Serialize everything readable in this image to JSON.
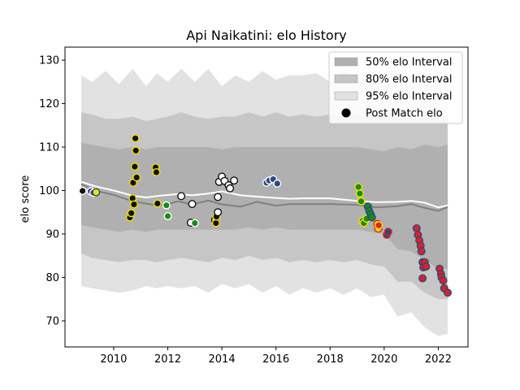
{
  "chart_data": {
    "type": "line",
    "title": "Api Naikatini: elo History",
    "xlabel": "",
    "ylabel": "elo score",
    "xlim": [
      2008.2,
      2023.1
    ],
    "ylim": [
      64,
      133
    ],
    "x_ticks": [
      2010,
      2012,
      2014,
      2016,
      2018,
      2020,
      2022
    ],
    "y_ticks": [
      70,
      80,
      90,
      100,
      110,
      120,
      130
    ],
    "grid": false,
    "legend_position": "top-right",
    "legend": [
      {
        "label": "50% elo Interval",
        "color": "#b0b0b0",
        "kind": "patch"
      },
      {
        "label": "80% elo Interval",
        "color": "#c6c6c6",
        "kind": "patch"
      },
      {
        "label": "95% elo Interval",
        "color": "#e2e2e2",
        "kind": "patch"
      },
      {
        "label": "Post Match elo",
        "color": "#000000",
        "kind": "marker"
      }
    ],
    "band_x": [
      2008.8,
      2009.2,
      2009.7,
      2010.2,
      2010.7,
      2011.2,
      2011.6,
      2012.0,
      2012.5,
      2013.0,
      2013.5,
      2014.0,
      2014.5,
      2015.0,
      2015.5,
      2016.0,
      2016.5,
      2017.0,
      2017.5,
      2018.0,
      2018.5,
      2019.0,
      2019.5,
      2020.0,
      2020.5,
      2021.0,
      2021.5,
      2022.0,
      2022.35
    ],
    "band_95_upper": [
      126.5,
      125,
      127.5,
      124.5,
      128,
      124,
      127,
      125,
      128,
      125,
      128,
      124,
      126.5,
      125,
      127.5,
      125.5,
      126.5,
      126.5,
      127,
      125,
      128,
      125,
      127.5,
      126.5,
      128,
      125.5,
      127.5,
      126,
      127.5
    ],
    "band_95_lower": [
      78,
      77.5,
      77,
      76.5,
      77,
      78,
      77.5,
      78,
      77.5,
      78,
      76.5,
      78.5,
      77.5,
      78.5,
      76.5,
      78,
      76,
      77.5,
      76.5,
      77.5,
      76,
      77.5,
      75.5,
      76,
      71,
      72,
      68.5,
      66.5,
      67
    ],
    "band_80_upper": [
      118,
      117.5,
      116.5,
      116.5,
      117,
      116,
      116.5,
      117,
      118,
      117,
      116.5,
      117,
      117,
      118,
      117,
      118,
      117,
      117.5,
      117,
      117.5,
      117,
      117.5,
      116.5,
      116.5,
      117.5,
      116.5,
      117,
      117,
      117
    ],
    "band_80_lower": [
      85.5,
      84.5,
      84,
      83.5,
      84,
      84,
      83.5,
      84,
      84.5,
      84,
      83.5,
      84.5,
      84,
      85,
      84,
      84.5,
      83.5,
      84,
      83.5,
      84,
      83.5,
      84,
      83,
      82.5,
      79,
      79,
      76.5,
      75,
      75
    ],
    "band_50_upper": [
      111,
      110.5,
      110,
      109.5,
      110,
      109.5,
      110,
      110,
      110,
      110,
      110,
      109.5,
      110,
      110,
      110,
      110,
      110,
      110,
      110,
      110,
      110,
      110,
      109.5,
      109,
      110,
      109.5,
      110.5,
      110,
      110.5
    ],
    "band_50_lower": [
      92,
      91.5,
      91,
      90.5,
      91,
      90.5,
      91,
      91,
      91,
      91,
      91,
      91,
      91,
      91.5,
      91,
      91.5,
      91,
      91,
      91,
      91,
      91,
      91,
      90.5,
      90,
      86.5,
      86,
      84,
      82,
      82
    ],
    "series": [
      {
        "kind": "median",
        "color": "#808080",
        "x": [
          2008.8,
          2009.3,
          2010.0,
          2010.7,
          2011.2,
          2011.7,
          2012.4,
          2012.9,
          2013.5,
          2014.0,
          2014.7,
          2015.3,
          2016.0,
          2016.5,
          2017.0,
          2018.0,
          2019.0,
          2019.7,
          2020.5,
          2021.0,
          2021.5,
          2022.0,
          2022.35
        ],
        "y": [
          101.5,
          100,
          99,
          97.5,
          97,
          96.5,
          97.5,
          96.8,
          97.7,
          96.8,
          96.3,
          97.4,
          96.5,
          96.9,
          96.9,
          96.9,
          96.7,
          96.1,
          96.4,
          96.9,
          96,
          95.3,
          96.2
        ]
      },
      {
        "kind": "mean",
        "color": "#ffffff",
        "x": [
          2008.8,
          2009.3,
          2010.0,
          2010.7,
          2011.2,
          2011.7,
          2012.4,
          2012.9,
          2013.5,
          2014.0,
          2014.7,
          2015.3,
          2016.0,
          2016.5,
          2017.0,
          2018.0,
          2019.0,
          2019.7,
          2020.5,
          2021.0,
          2021.5,
          2022.0,
          2022.35
        ],
        "y": [
          102,
          101,
          100,
          98.8,
          98.4,
          98.8,
          99.2,
          98.9,
          99.3,
          99.8,
          98.9,
          98.6,
          98.3,
          98.1,
          98.2,
          98.2,
          97.6,
          97.3,
          97.4,
          97.6,
          97.2,
          96.1,
          96.6
        ]
      }
    ],
    "points": [
      {
        "x": 2008.85,
        "y": 99.9,
        "fill": "#111111",
        "edge": "#ffffff"
      },
      {
        "x": 2009.15,
        "y": 99.8,
        "fill": "#2a4a7f",
        "edge": "#ffffff"
      },
      {
        "x": 2009.25,
        "y": 99.5,
        "fill": "#2a4a7f",
        "edge": "#ffffff"
      },
      {
        "x": 2009.35,
        "y": 99.6,
        "fill": "#f5e000",
        "edge": "#2a4a7f"
      },
      {
        "x": 2010.6,
        "y": 93.8,
        "fill": "#111111",
        "edge": "#f5e000"
      },
      {
        "x": 2010.65,
        "y": 94.8,
        "fill": "#111111",
        "edge": "#f5e000"
      },
      {
        "x": 2010.7,
        "y": 98.2,
        "fill": "#111111",
        "edge": "#f5e000"
      },
      {
        "x": 2010.72,
        "y": 101.8,
        "fill": "#111111",
        "edge": "#f5e000"
      },
      {
        "x": 2010.75,
        "y": 96.8,
        "fill": "#111111",
        "edge": "#f5e000"
      },
      {
        "x": 2010.78,
        "y": 105.5,
        "fill": "#111111",
        "edge": "#f5e000"
      },
      {
        "x": 2010.8,
        "y": 112.0,
        "fill": "#111111",
        "edge": "#f5e000"
      },
      {
        "x": 2010.82,
        "y": 109.2,
        "fill": "#111111",
        "edge": "#f5e000"
      },
      {
        "x": 2010.85,
        "y": 103.0,
        "fill": "#111111",
        "edge": "#f5e000"
      },
      {
        "x": 2011.55,
        "y": 105.3,
        "fill": "#111111",
        "edge": "#f5e000"
      },
      {
        "x": 2011.58,
        "y": 104.2,
        "fill": "#111111",
        "edge": "#f5e000"
      },
      {
        "x": 2011.62,
        "y": 97.0,
        "fill": "#111111",
        "edge": "#f5e000"
      },
      {
        "x": 2011.95,
        "y": 96.6,
        "fill": "#1a8a1a",
        "edge": "#ffffff"
      },
      {
        "x": 2012.0,
        "y": 94.1,
        "fill": "#1a8a1a",
        "edge": "#ffffff"
      },
      {
        "x": 2012.5,
        "y": 98.7,
        "fill": "#ffffff",
        "edge": "#111111"
      },
      {
        "x": 2012.85,
        "y": 92.6,
        "fill": "#ffffff",
        "edge": "#111111"
      },
      {
        "x": 2012.9,
        "y": 96.9,
        "fill": "#ffffff",
        "edge": "#111111"
      },
      {
        "x": 2013.0,
        "y": 92.5,
        "fill": "#1a8a1a",
        "edge": "#ffffff"
      },
      {
        "x": 2013.75,
        "y": 93.2,
        "fill": "#f5e000",
        "edge": "#111111"
      },
      {
        "x": 2013.78,
        "y": 92.5,
        "fill": "#111111",
        "edge": "#f5e000"
      },
      {
        "x": 2013.8,
        "y": 94.0,
        "fill": "#111111",
        "edge": "#f5e000"
      },
      {
        "x": 2013.85,
        "y": 95.0,
        "fill": "#ffffff",
        "edge": "#111111"
      },
      {
        "x": 2013.85,
        "y": 98.5,
        "fill": "#ffffff",
        "edge": "#111111"
      },
      {
        "x": 2013.9,
        "y": 102.0,
        "fill": "#ffffff",
        "edge": "#111111"
      },
      {
        "x": 2014.0,
        "y": 103.2,
        "fill": "#ffffff",
        "edge": "#111111"
      },
      {
        "x": 2014.1,
        "y": 102.2,
        "fill": "#ffffff",
        "edge": "#111111"
      },
      {
        "x": 2014.25,
        "y": 101.2,
        "fill": "#ffffff",
        "edge": "#111111"
      },
      {
        "x": 2014.3,
        "y": 100.5,
        "fill": "#ffffff",
        "edge": "#111111"
      },
      {
        "x": 2014.45,
        "y": 102.3,
        "fill": "#ffffff",
        "edge": "#111111"
      },
      {
        "x": 2015.65,
        "y": 101.8,
        "fill": "#2a4a7f",
        "edge": "#ffffff"
      },
      {
        "x": 2015.75,
        "y": 102.3,
        "fill": "#2a4a7f",
        "edge": "#ffffff"
      },
      {
        "x": 2015.9,
        "y": 102.6,
        "fill": "#2a4a7f",
        "edge": "#ffffff"
      },
      {
        "x": 2016.05,
        "y": 101.6,
        "fill": "#2a4a7f",
        "edge": "#ffffff"
      },
      {
        "x": 2019.05,
        "y": 100.8,
        "fill": "#1a8a1a",
        "edge": "#f5e000"
      },
      {
        "x": 2019.1,
        "y": 99.3,
        "fill": "#1a8a1a",
        "edge": "#f5e000"
      },
      {
        "x": 2019.15,
        "y": 97.5,
        "fill": "#1a8a1a",
        "edge": "#f5e000"
      },
      {
        "x": 2019.2,
        "y": 93.0,
        "fill": "#1a8a1a",
        "edge": "#f5e000"
      },
      {
        "x": 2019.25,
        "y": 92.5,
        "fill": "#1a8a1a",
        "edge": "#f5e000"
      },
      {
        "x": 2019.35,
        "y": 93.5,
        "fill": "#1a8a1a",
        "edge": "#f5e000"
      },
      {
        "x": 2019.4,
        "y": 96.3,
        "fill": "#1a8a1a",
        "edge": "#2a4a7f"
      },
      {
        "x": 2019.45,
        "y": 95.3,
        "fill": "#1a8a1a",
        "edge": "#2a4a7f"
      },
      {
        "x": 2019.5,
        "y": 94.5,
        "fill": "#1a8a1a",
        "edge": "#2a4a7f"
      },
      {
        "x": 2019.55,
        "y": 93.8,
        "fill": "#1a8a1a",
        "edge": "#2a4a7f"
      },
      {
        "x": 2019.75,
        "y": 92.3,
        "fill": "#f5e000",
        "edge": "#e02020"
      },
      {
        "x": 2019.78,
        "y": 91.2,
        "fill": "#f5e000",
        "edge": "#e02020"
      },
      {
        "x": 2019.8,
        "y": 92.0,
        "fill": "#e02020",
        "edge": "#f5e000"
      },
      {
        "x": 2020.1,
        "y": 89.8,
        "fill": "#2a4a7f",
        "edge": "#e02020"
      },
      {
        "x": 2020.15,
        "y": 90.5,
        "fill": "#2a4a7f",
        "edge": "#e02020"
      },
      {
        "x": 2021.2,
        "y": 91.3,
        "fill": "#e02020",
        "edge": "#2a4a7f"
      },
      {
        "x": 2021.25,
        "y": 89.8,
        "fill": "#e02020",
        "edge": "#2a4a7f"
      },
      {
        "x": 2021.3,
        "y": 88.5,
        "fill": "#e02020",
        "edge": "#2a4a7f"
      },
      {
        "x": 2021.35,
        "y": 87.3,
        "fill": "#e02020",
        "edge": "#2a4a7f"
      },
      {
        "x": 2021.38,
        "y": 86.0,
        "fill": "#e02020",
        "edge": "#2a4a7f"
      },
      {
        "x": 2021.42,
        "y": 83.5,
        "fill": "#e02020",
        "edge": "#2a4a7f"
      },
      {
        "x": 2021.45,
        "y": 82.3,
        "fill": "#e02020",
        "edge": "#2a4a7f"
      },
      {
        "x": 2021.5,
        "y": 83.5,
        "fill": "#e02020",
        "edge": "#2a4a7f"
      },
      {
        "x": 2021.55,
        "y": 82.5,
        "fill": "#e02020",
        "edge": "#2a4a7f"
      },
      {
        "x": 2021.42,
        "y": 79.8,
        "fill": "#e02020",
        "edge": "#2a4a7f"
      },
      {
        "x": 2022.05,
        "y": 82.0,
        "fill": "#e02020",
        "edge": "#2a4a7f"
      },
      {
        "x": 2022.1,
        "y": 80.8,
        "fill": "#e02020",
        "edge": "#2a4a7f"
      },
      {
        "x": 2022.12,
        "y": 80.0,
        "fill": "#e02020",
        "edge": "#2a4a7f"
      },
      {
        "x": 2022.18,
        "y": 79.3,
        "fill": "#e02020",
        "edge": "#2a4a7f"
      },
      {
        "x": 2022.22,
        "y": 77.5,
        "fill": "#e02020",
        "edge": "#2a4a7f"
      },
      {
        "x": 2022.35,
        "y": 76.5,
        "fill": "#e02020",
        "edge": "#2a4a7f"
      }
    ]
  }
}
